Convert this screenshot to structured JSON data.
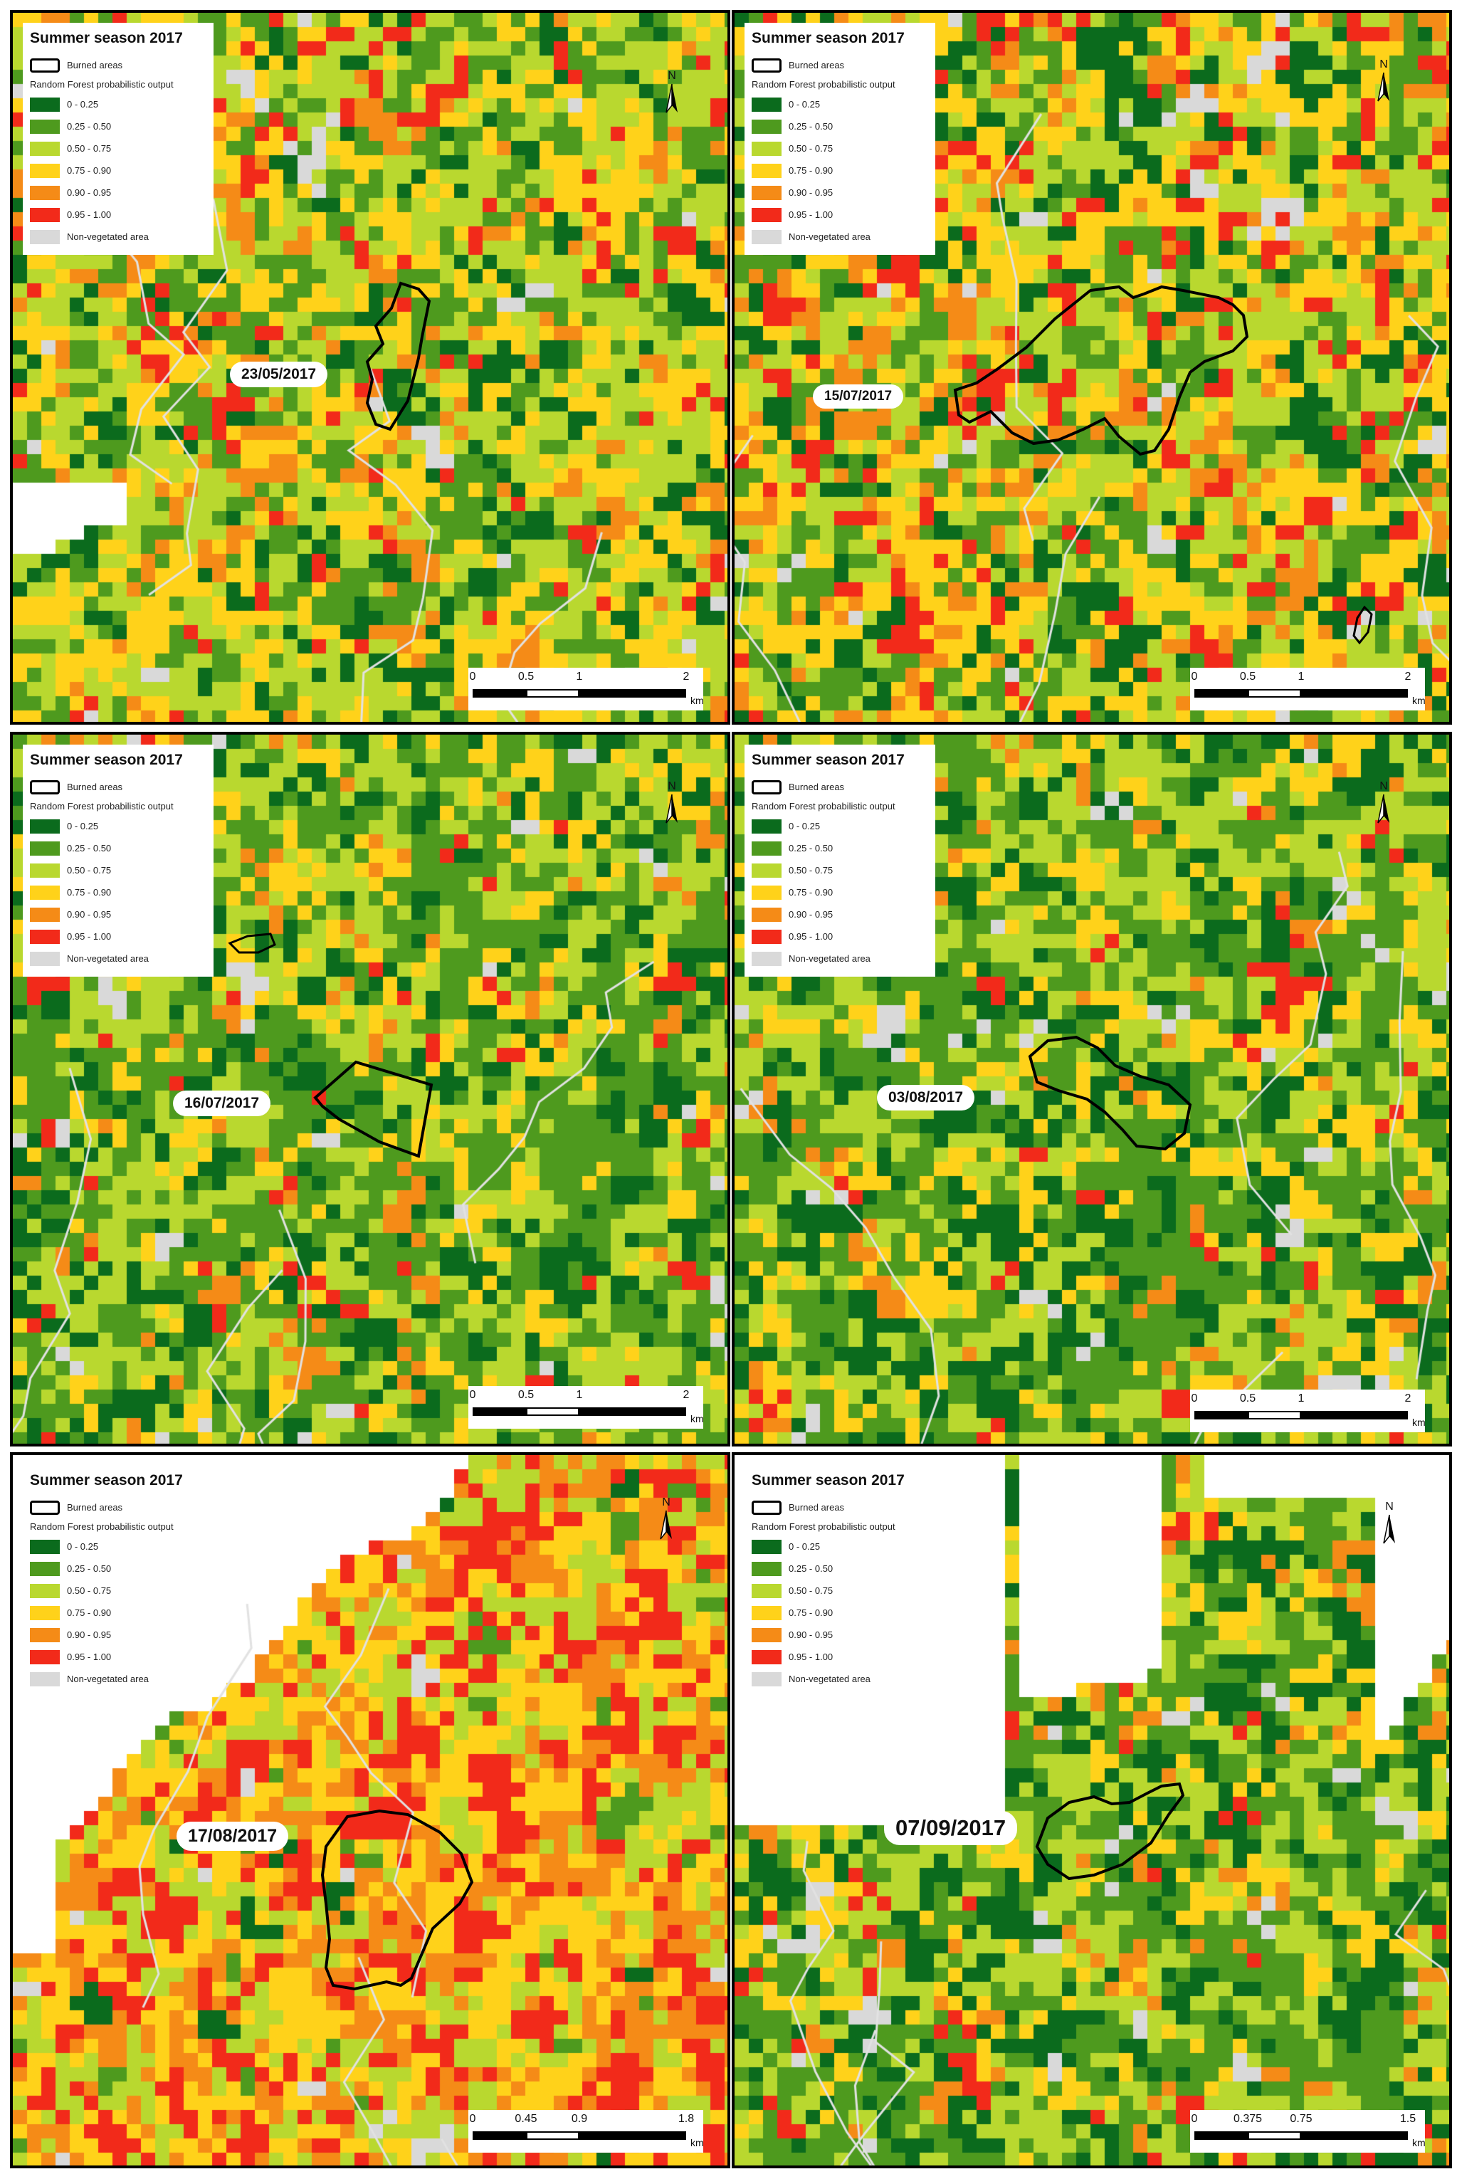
{
  "legend": {
    "title": "Summer season 2017",
    "burned_label": "Burned areas",
    "subtitle": "Random Forest probabilistic output",
    "classes": [
      {
        "label": "0 - 0.25",
        "color": "#0b6b1d"
      },
      {
        "label": "0.25 - 0.50",
        "color": "#4e9a1e"
      },
      {
        "label": "0.50 - 0.75",
        "color": "#b9d82f"
      },
      {
        "label": "0.75 - 0.90",
        "color": "#ffd21a"
      },
      {
        "label": "0.90 - 0.95",
        "color": "#f58b17"
      },
      {
        "label": "0.95 - 1.00",
        "color": "#f22a1a"
      },
      {
        "label": "Non-vegetated area",
        "color": "#d9d9d9"
      }
    ]
  },
  "north_label": "N",
  "scale_unit": "km",
  "panels": [
    {
      "date": "23/05/2017",
      "scale_ticks": [
        "0",
        "0.5",
        "1",
        "2"
      ],
      "dominant": "mixed"
    },
    {
      "date": "15/07/2017",
      "scale_ticks": [
        "0",
        "0.5",
        "1",
        "2"
      ],
      "dominant": "mixed-hot"
    },
    {
      "date": "16/07/2017",
      "scale_ticks": [
        "0",
        "0.5",
        "1",
        "2"
      ],
      "dominant": "green"
    },
    {
      "date": "03/08/2017",
      "scale_ticks": [
        "0",
        "0.5",
        "1",
        "2"
      ],
      "dominant": "green"
    },
    {
      "date": "17/08/2017",
      "scale_ticks": [
        "0",
        "0.45",
        "0.9",
        "1.8"
      ],
      "dominant": "hot"
    },
    {
      "date": "07/09/2017",
      "scale_ticks": [
        "0",
        "0.375",
        "0.75",
        "1.5"
      ],
      "dominant": "green"
    }
  ]
}
